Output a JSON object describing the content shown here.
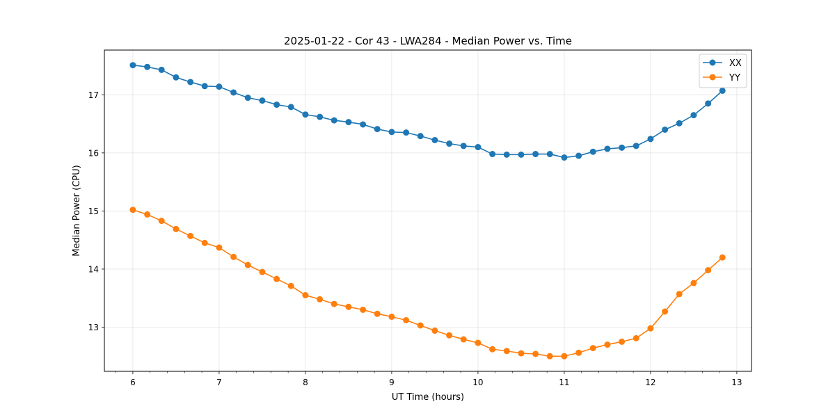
{
  "chart_data": {
    "type": "line",
    "title": "2025-01-22 - Cor 43 - LWA284 - Median Power vs. Time",
    "xlabel": "UT Time (hours)",
    "ylabel": "Median Power (CPU)",
    "xlim": [
      5.67,
      13.17
    ],
    "ylim": [
      12.24,
      17.77
    ],
    "xticks": [
      6,
      7,
      8,
      9,
      10,
      11,
      12,
      13
    ],
    "xtick_labels": [
      "6",
      "7",
      "8",
      "9",
      "10",
      "11",
      "12",
      "13"
    ],
    "yticks": [
      13,
      14,
      15,
      16,
      17
    ],
    "ytick_labels": [
      "13",
      "14",
      "15",
      "16",
      "17"
    ],
    "grid": true,
    "legend_position": "top-right",
    "x": [
      6.0,
      6.167,
      6.333,
      6.5,
      6.667,
      6.833,
      7.0,
      7.167,
      7.333,
      7.5,
      7.667,
      7.833,
      8.0,
      8.167,
      8.333,
      8.5,
      8.667,
      8.833,
      9.0,
      9.167,
      9.333,
      9.5,
      9.667,
      9.833,
      10.0,
      10.167,
      10.333,
      10.5,
      10.667,
      10.833,
      11.0,
      11.167,
      11.333,
      11.5,
      11.667,
      11.833,
      12.0,
      12.167,
      12.333,
      12.5,
      12.667,
      12.833
    ],
    "series": [
      {
        "name": "XX",
        "color": "#1f77b4",
        "values": [
          17.51,
          17.48,
          17.43,
          17.3,
          17.22,
          17.15,
          17.14,
          17.04,
          16.95,
          16.9,
          16.83,
          16.79,
          16.66,
          16.62,
          16.56,
          16.53,
          16.49,
          16.41,
          16.36,
          16.35,
          16.29,
          16.22,
          16.16,
          16.12,
          16.1,
          15.98,
          15.97,
          15.97,
          15.98,
          15.98,
          15.92,
          15.95,
          16.02,
          16.07,
          16.09,
          16.12,
          16.24,
          16.4,
          16.51,
          16.65,
          16.85,
          17.07
        ]
      },
      {
        "name": "YY",
        "color": "#ff7f0e",
        "values": [
          15.02,
          14.94,
          14.83,
          14.69,
          14.57,
          14.45,
          14.37,
          14.21,
          14.07,
          13.95,
          13.83,
          13.71,
          13.55,
          13.48,
          13.4,
          13.35,
          13.3,
          13.23,
          13.18,
          13.12,
          13.03,
          12.94,
          12.86,
          12.79,
          12.73,
          12.62,
          12.59,
          12.55,
          12.54,
          12.5,
          12.5,
          12.56,
          12.64,
          12.7,
          12.75,
          12.81,
          12.98,
          13.27,
          13.57,
          13.76,
          13.98,
          14.2
        ]
      }
    ]
  }
}
